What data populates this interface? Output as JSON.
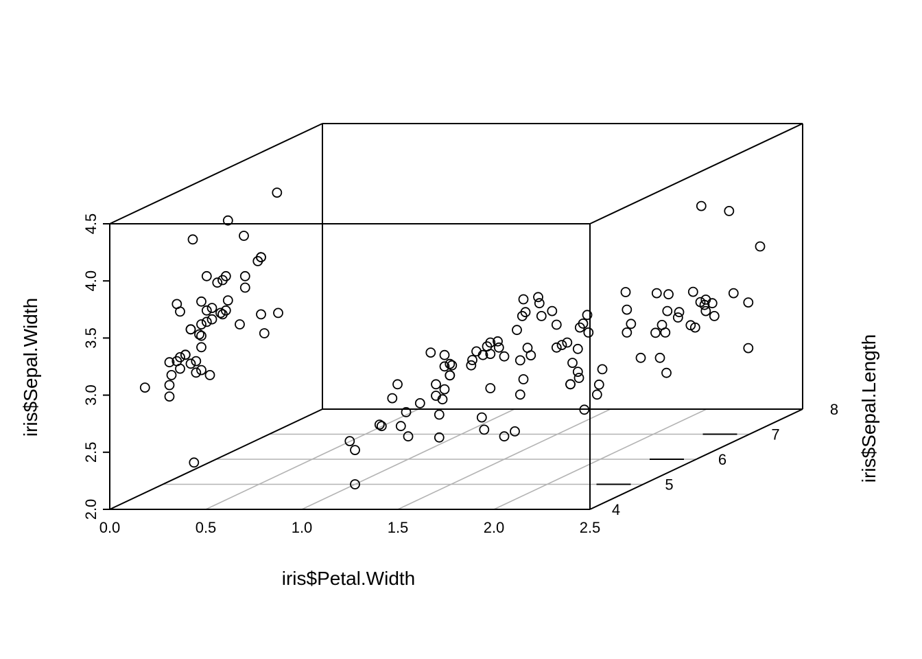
{
  "chart_data": {
    "type": "scatter3d",
    "xlabel": "iris$Petal.Width",
    "ylabel": "iris$Sepal.Length",
    "zlabel": "iris$Sepal.Width",
    "xlim": [
      0,
      2.5
    ],
    "ylim": [
      4,
      8
    ],
    "zlim": [
      2,
      4.5
    ],
    "x_ticks": [
      "0.0",
      "0.5",
      "1.0",
      "1.5",
      "2.0",
      "2.5"
    ],
    "y_ticks": [
      "4",
      "5",
      "6",
      "7",
      "8"
    ],
    "z_ticks": [
      "2.0",
      "2.5",
      "3.0",
      "3.5",
      "4.0",
      "4.5"
    ],
    "grid": true,
    "box": true,
    "points": [
      [
        0.2,
        5.1,
        3.5
      ],
      [
        0.2,
        4.9,
        3.0
      ],
      [
        0.2,
        4.7,
        3.2
      ],
      [
        0.2,
        4.6,
        3.1
      ],
      [
        0.2,
        5.0,
        3.6
      ],
      [
        0.4,
        5.4,
        3.9
      ],
      [
        0.3,
        4.6,
        3.4
      ],
      [
        0.2,
        5.0,
        3.4
      ],
      [
        0.2,
        4.4,
        2.9
      ],
      [
        0.1,
        4.9,
        3.1
      ],
      [
        0.2,
        5.4,
        3.7
      ],
      [
        0.2,
        4.8,
        3.4
      ],
      [
        0.1,
        4.8,
        3.0
      ],
      [
        0.1,
        4.3,
        3.0
      ],
      [
        0.2,
        5.8,
        4.0
      ],
      [
        0.4,
        5.7,
        4.4
      ],
      [
        0.4,
        5.4,
        3.9
      ],
      [
        0.3,
        5.1,
        3.5
      ],
      [
        0.3,
        5.7,
        3.8
      ],
      [
        0.3,
        5.1,
        3.8
      ],
      [
        0.2,
        5.4,
        3.4
      ],
      [
        0.4,
        5.1,
        3.7
      ],
      [
        0.2,
        4.6,
        3.6
      ],
      [
        0.5,
        5.1,
        3.3
      ],
      [
        0.2,
        4.8,
        3.4
      ],
      [
        0.2,
        5.0,
        3.0
      ],
      [
        0.4,
        5.0,
        3.4
      ],
      [
        0.2,
        5.2,
        3.5
      ],
      [
        0.2,
        5.2,
        3.4
      ],
      [
        0.2,
        4.7,
        3.2
      ],
      [
        0.2,
        4.8,
        3.1
      ],
      [
        0.4,
        5.4,
        3.4
      ],
      [
        0.1,
        5.2,
        4.1
      ],
      [
        0.2,
        5.5,
        4.2
      ],
      [
        0.2,
        4.9,
        3.1
      ],
      [
        0.2,
        5.0,
        3.2
      ],
      [
        0.2,
        5.5,
        3.5
      ],
      [
        0.1,
        4.9,
        3.6
      ],
      [
        0.2,
        4.4,
        3.0
      ],
      [
        0.2,
        5.1,
        3.4
      ],
      [
        0.3,
        5.0,
        3.5
      ],
      [
        0.3,
        4.5,
        2.3
      ],
      [
        0.2,
        4.4,
        3.2
      ],
      [
        0.6,
        5.0,
        3.5
      ],
      [
        0.4,
        5.1,
        3.8
      ],
      [
        0.3,
        4.8,
        3.0
      ],
      [
        0.2,
        5.1,
        3.8
      ],
      [
        0.2,
        4.6,
        3.2
      ],
      [
        0.2,
        5.3,
        3.7
      ],
      [
        0.2,
        5.0,
        3.3
      ],
      [
        1.4,
        7.0,
        3.2
      ],
      [
        1.5,
        6.4,
        3.2
      ],
      [
        1.5,
        6.9,
        3.1
      ],
      [
        1.3,
        5.5,
        2.3
      ],
      [
        1.5,
        6.5,
        2.8
      ],
      [
        1.3,
        5.7,
        2.8
      ],
      [
        1.6,
        6.3,
        3.3
      ],
      [
        1.0,
        4.9,
        2.4
      ],
      [
        1.3,
        6.6,
        2.9
      ],
      [
        1.4,
        5.2,
        2.7
      ],
      [
        1.0,
        5.0,
        2.0
      ],
      [
        1.5,
        5.9,
        3.0
      ],
      [
        1.0,
        6.0,
        2.2
      ],
      [
        1.4,
        6.1,
        2.9
      ],
      [
        1.3,
        5.6,
        2.9
      ],
      [
        1.4,
        6.7,
        3.1
      ],
      [
        1.5,
        5.6,
        3.0
      ],
      [
        1.0,
        5.8,
        2.7
      ],
      [
        1.5,
        6.2,
        2.2
      ],
      [
        1.1,
        5.6,
        2.5
      ],
      [
        1.8,
        5.9,
        3.2
      ],
      [
        1.3,
        6.1,
        2.8
      ],
      [
        1.5,
        6.3,
        2.5
      ],
      [
        1.2,
        6.1,
        2.8
      ],
      [
        1.3,
        6.4,
        2.9
      ],
      [
        1.4,
        6.6,
        3.0
      ],
      [
        1.4,
        6.8,
        2.8
      ],
      [
        1.7,
        6.7,
        3.0
      ],
      [
        1.5,
        6.0,
        2.9
      ],
      [
        1.0,
        5.7,
        2.6
      ],
      [
        1.1,
        5.5,
        2.4
      ],
      [
        1.0,
        5.5,
        2.4
      ],
      [
        1.2,
        5.8,
        2.7
      ],
      [
        1.6,
        6.0,
        2.7
      ],
      [
        1.5,
        5.4,
        3.0
      ],
      [
        1.6,
        6.0,
        3.4
      ],
      [
        1.5,
        6.7,
        3.1
      ],
      [
        1.3,
        6.3,
        2.3
      ],
      [
        1.3,
        5.6,
        3.0
      ],
      [
        1.3,
        5.5,
        2.5
      ],
      [
        1.2,
        5.5,
        2.6
      ],
      [
        1.4,
        6.1,
        3.0
      ],
      [
        1.2,
        5.8,
        2.6
      ],
      [
        1.0,
        5.0,
        2.3
      ],
      [
        1.3,
        5.6,
        2.7
      ],
      [
        1.2,
        5.7,
        3.0
      ],
      [
        1.3,
        5.7,
        2.9
      ],
      [
        1.3,
        6.2,
        2.9
      ],
      [
        1.1,
        5.1,
        2.5
      ],
      [
        1.3,
        5.7,
        2.8
      ],
      [
        2.5,
        6.3,
        3.3
      ],
      [
        1.9,
        5.8,
        2.7
      ],
      [
        2.1,
        7.1,
        3.0
      ],
      [
        1.8,
        6.3,
        2.9
      ],
      [
        2.2,
        6.5,
        3.0
      ],
      [
        2.1,
        7.6,
        3.0
      ],
      [
        1.7,
        4.9,
        2.5
      ],
      [
        1.8,
        7.3,
        2.9
      ],
      [
        1.8,
        6.7,
        2.5
      ],
      [
        2.5,
        7.2,
        3.6
      ],
      [
        2.0,
        6.5,
        3.2
      ],
      [
        1.9,
        6.4,
        2.7
      ],
      [
        2.1,
        6.8,
        3.0
      ],
      [
        2.0,
        5.7,
        2.5
      ],
      [
        2.4,
        5.8,
        2.8
      ],
      [
        2.3,
        6.4,
        3.2
      ],
      [
        1.8,
        6.5,
        3.0
      ],
      [
        2.2,
        7.7,
        3.8
      ],
      [
        2.3,
        7.7,
        2.6
      ],
      [
        1.5,
        6.0,
        2.2
      ],
      [
        2.3,
        6.9,
        3.2
      ],
      [
        2.0,
        5.6,
        2.8
      ],
      [
        2.0,
        7.7,
        2.8
      ],
      [
        1.8,
        6.3,
        2.7
      ],
      [
        2.1,
        6.7,
        3.3
      ],
      [
        1.8,
        7.2,
        3.2
      ],
      [
        1.8,
        6.2,
        2.8
      ],
      [
        1.8,
        6.1,
        3.0
      ],
      [
        2.1,
        6.4,
        2.8
      ],
      [
        1.6,
        7.2,
        3.0
      ],
      [
        1.9,
        7.4,
        2.8
      ],
      [
        2.0,
        7.9,
        3.8
      ],
      [
        2.2,
        6.4,
        2.8
      ],
      [
        1.5,
        6.3,
        2.8
      ],
      [
        1.4,
        6.1,
        2.6
      ],
      [
        2.3,
        7.7,
        3.0
      ],
      [
        2.4,
        6.3,
        3.4
      ],
      [
        1.8,
        6.4,
        3.1
      ],
      [
        1.8,
        6.0,
        3.0
      ],
      [
        2.1,
        6.9,
        3.1
      ],
      [
        2.4,
        6.7,
        3.1
      ],
      [
        2.3,
        6.9,
        3.1
      ],
      [
        1.9,
        5.8,
        2.7
      ],
      [
        2.3,
        6.8,
        3.2
      ],
      [
        2.5,
        6.7,
        3.3
      ],
      [
        2.3,
        6.7,
        3.0
      ],
      [
        1.9,
        6.3,
        2.5
      ],
      [
        2.0,
        6.5,
        3.0
      ],
      [
        2.3,
        6.2,
        3.4
      ],
      [
        1.8,
        5.9,
        3.0
      ]
    ]
  }
}
